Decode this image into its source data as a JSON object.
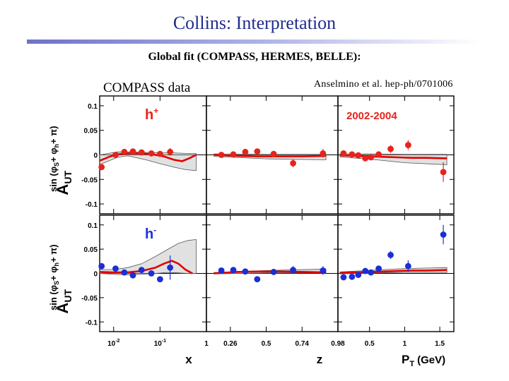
{
  "slide": {
    "title": "Collins: Interpretation",
    "subtitle": "Global fit (COMPASS, HERMES, BELLE):",
    "compass_label": "COMPASS data",
    "reference": "Anselmino et al. hep-ph/0701006"
  },
  "colors": {
    "title": "#1f2c8f",
    "hplus": "#e8231a",
    "hminus": "#1a2fd6",
    "fit": "#e00000",
    "band": "#bdbdbd"
  },
  "chart_data": {
    "type": "scatter",
    "y_axis": {
      "label": "A",
      "sub": "UT",
      "super": "sin (φ",
      "super2": "S",
      "super3": "+ φ",
      "super4": "h",
      "super5": "+ π)",
      "ylim": [
        -0.12,
        0.12
      ],
      "ticks": [
        0.1,
        0.05,
        0,
        -0.05,
        -0.1
      ],
      "tick_labels": [
        "0.1",
        "0.05",
        "0",
        "-0.05",
        "-0.1"
      ]
    },
    "panels_x": [
      {
        "label": "x",
        "scale": "log",
        "xlim": [
          0.005,
          1.0
        ],
        "ticks": [
          0.01,
          0.1,
          1
        ],
        "tick_labels": [
          "10-2",
          "10-1",
          "1"
        ]
      },
      {
        "label": "z",
        "scale": "linear",
        "xlim": [
          0.1,
          0.98
        ],
        "ticks": [
          0.26,
          0.5,
          0.74,
          0.98
        ],
        "tick_labels": [
          "0.26",
          "0.5",
          "0.74",
          "0.98"
        ]
      },
      {
        "label": "PT (GeV)",
        "label_main": "P",
        "label_sub": "T",
        "label_unit": "(GeV)",
        "scale": "linear",
        "xlim": [
          0.05,
          1.7
        ],
        "ticks": [
          0.5,
          1.0,
          1.5
        ],
        "tick_labels": [
          "0.5",
          "1",
          "1.5"
        ]
      }
    ],
    "rows": [
      {
        "hadron": "h",
        "charge": "+",
        "color_key": "hplus",
        "annotation": "2002-2004",
        "series": [
          {
            "x": [
              0.0055,
              0.011,
              0.017,
              0.026,
              0.04,
              0.065,
              0.1,
              0.165
            ],
            "y": [
              -0.025,
              0.0,
              0.006,
              0.007,
              0.005,
              0.003,
              0.002,
              0.006
            ],
            "err": [
              0.006,
              0.005,
              0.004,
              0.004,
              0.004,
              0.004,
              0.005,
              0.008
            ]
          },
          {
            "x": [
              0.2,
              0.28,
              0.36,
              0.44,
              0.55,
              0.68,
              0.88
            ],
            "y": [
              0.0,
              0.001,
              0.006,
              0.007,
              0.002,
              -0.017,
              0.003
            ],
            "err": [
              0.004,
              0.004,
              0.004,
              0.005,
              0.006,
              0.008,
              0.009
            ]
          },
          {
            "x": [
              0.13,
              0.25,
              0.34,
              0.44,
              0.52,
              0.63,
              0.8,
              1.05,
              1.55
            ],
            "y": [
              0.003,
              0.001,
              -0.001,
              -0.007,
              -0.005,
              0.001,
              0.012,
              0.02,
              -0.035
            ],
            "err": [
              0.004,
              0.004,
              0.004,
              0.004,
              0.005,
              0.006,
              0.008,
              0.01,
              0.02
            ]
          }
        ],
        "fit": [
          {
            "x": [
              0.005,
              0.008,
              0.012,
              0.02,
              0.04,
              0.07,
              0.12,
              0.2,
              0.3,
              0.45,
              0.6
            ],
            "y": [
              -0.012,
              -0.004,
              0.001,
              0.003,
              0.003,
              0.001,
              -0.003,
              -0.01,
              -0.013,
              -0.006,
              0.0
            ]
          },
          {
            "x": [
              0.15,
              0.3,
              0.45,
              0.6,
              0.75,
              0.9
            ],
            "y": [
              0.0,
              -0.002,
              -0.003,
              -0.003,
              -0.003,
              -0.002
            ]
          },
          {
            "x": [
              0.08,
              0.3,
              0.5,
              0.7,
              0.9,
              1.1,
              1.3,
              1.6
            ],
            "y": [
              -0.001,
              -0.002,
              -0.003,
              -0.004,
              -0.005,
              -0.006,
              -0.006,
              -0.007
            ]
          }
        ],
        "band_upper": [
          {
            "x": [
              0.005,
              0.012,
              0.02,
              0.05,
              0.1,
              0.2,
              0.35,
              0.6
            ],
            "y": [
              0.0,
              0.006,
              0.006,
              0.005,
              0.004,
              0.004,
              0.003,
              0.003
            ]
          },
          {
            "x": [
              0.15,
              0.5,
              0.9
            ],
            "y": [
              0.002,
              0.001,
              0.001
            ]
          },
          {
            "x": [
              0.08,
              0.6,
              1.0,
              1.6
            ],
            "y": [
              0.002,
              0.002,
              0.001,
              0.001
            ]
          }
        ],
        "band_lower": [
          {
            "x": [
              0.005,
              0.012,
              0.02,
              0.05,
              0.1,
              0.2,
              0.35,
              0.6
            ],
            "y": [
              -0.02,
              -0.005,
              -0.002,
              -0.01,
              -0.018,
              -0.025,
              -0.03,
              -0.032
            ]
          },
          {
            "x": [
              0.15,
              0.5,
              0.9
            ],
            "y": [
              -0.003,
              -0.008,
              -0.01
            ]
          },
          {
            "x": [
              0.08,
              0.6,
              1.0,
              1.6
            ],
            "y": [
              -0.004,
              -0.01,
              -0.016,
              -0.02
            ]
          }
        ]
      },
      {
        "hadron": "h",
        "charge": "-",
        "color_key": "hminus",
        "annotation": "",
        "series": [
          {
            "x": [
              0.0055,
              0.011,
              0.017,
              0.026,
              0.04,
              0.065,
              0.1,
              0.165
            ],
            "y": [
              0.015,
              0.01,
              0.002,
              -0.004,
              0.007,
              0.0,
              -0.012,
              0.012
            ],
            "err": [
              0.006,
              0.005,
              0.004,
              0.004,
              0.004,
              0.004,
              0.005,
              0.025
            ]
          },
          {
            "x": [
              0.2,
              0.28,
              0.36,
              0.44,
              0.55,
              0.68,
              0.88
            ],
            "y": [
              0.006,
              0.007,
              0.004,
              -0.012,
              0.003,
              0.007,
              0.006
            ],
            "err": [
              0.004,
              0.004,
              0.004,
              0.005,
              0.006,
              0.008,
              0.009
            ]
          },
          {
            "x": [
              0.13,
              0.25,
              0.34,
              0.44,
              0.52,
              0.63,
              0.8,
              1.05,
              1.55
            ],
            "y": [
              -0.008,
              -0.007,
              -0.003,
              0.005,
              0.002,
              0.01,
              0.038,
              0.015,
              0.08
            ],
            "err": [
              0.004,
              0.004,
              0.004,
              0.004,
              0.005,
              0.006,
              0.008,
              0.012,
              0.02
            ]
          }
        ],
        "fit": [
          {
            "x": [
              0.005,
              0.01,
              0.02,
              0.04,
              0.08,
              0.12,
              0.18,
              0.25,
              0.35,
              0.5
            ],
            "y": [
              0.003,
              0.002,
              0.002,
              0.005,
              0.012,
              0.02,
              0.026,
              0.02,
              0.008,
              0.0
            ]
          },
          {
            "x": [
              0.15,
              0.3,
              0.45,
              0.6,
              0.75,
              0.9
            ],
            "y": [
              0.0,
              0.003,
              0.004,
              0.004,
              0.003,
              0.002
            ]
          },
          {
            "x": [
              0.08,
              0.3,
              0.5,
              0.7,
              0.9,
              1.1,
              1.3,
              1.6
            ],
            "y": [
              0.001,
              0.002,
              0.003,
              0.004,
              0.005,
              0.006,
              0.006,
              0.007
            ]
          }
        ],
        "band_upper": [
          {
            "x": [
              0.005,
              0.01,
              0.02,
              0.04,
              0.08,
              0.15,
              0.25,
              0.4,
              0.6
            ],
            "y": [
              0.008,
              0.008,
              0.012,
              0.02,
              0.035,
              0.05,
              0.062,
              0.068,
              0.07
            ]
          },
          {
            "x": [
              0.15,
              0.5,
              0.9
            ],
            "y": [
              0.002,
              0.006,
              0.009
            ]
          },
          {
            "x": [
              0.08,
              0.6,
              1.0,
              1.6
            ],
            "y": [
              0.003,
              0.007,
              0.01,
              0.012
            ]
          }
        ],
        "band_lower": [
          {
            "x": [
              0.005,
              0.01,
              0.02,
              0.04,
              0.08,
              0.15,
              0.25,
              0.4,
              0.6
            ],
            "y": [
              0.0,
              -0.002,
              -0.003,
              -0.002,
              0.0,
              0.002,
              0.001,
              0.0,
              0.0
            ]
          },
          {
            "x": [
              0.15,
              0.5,
              0.9
            ],
            "y": [
              -0.001,
              0.001,
              0.001
            ]
          },
          {
            "x": [
              0.08,
              0.6,
              1.0,
              1.6
            ],
            "y": [
              -0.001,
              0.001,
              0.002,
              0.002
            ]
          }
        ]
      }
    ]
  }
}
